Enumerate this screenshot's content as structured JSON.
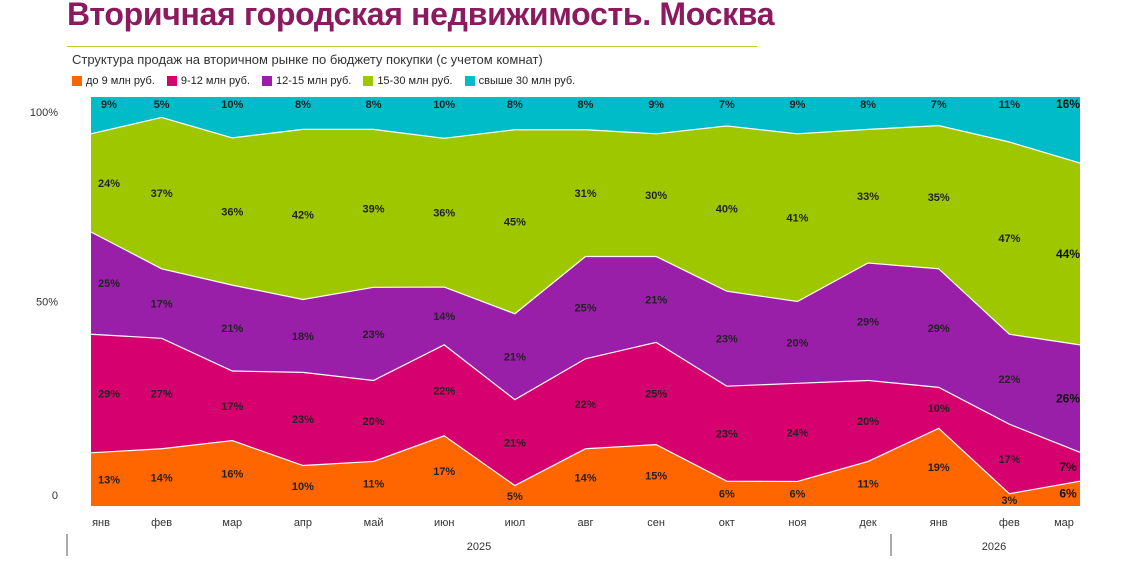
{
  "title": "Вторичная городская недвижимость. Москва",
  "subtitle": "Структура продаж на вторичном рынке по бюджету покупки (с учетом комнат)",
  "chart_data": {
    "type": "area",
    "stacked": true,
    "normalized_percent": true,
    "categories": [
      "янв",
      "фев",
      "мар",
      "апр",
      "май",
      "июн",
      "июл",
      "авг",
      "сен",
      "окт",
      "ноя",
      "дек",
      "янв",
      "фев",
      "мар"
    ],
    "years": [
      {
        "label": "2025",
        "months": 12
      },
      {
        "label": "2026",
        "months": 3
      }
    ],
    "y_ticks": [
      "0",
      "50%",
      "100%"
    ],
    "ylim": [
      0,
      100
    ],
    "legend_position": "top",
    "series": [
      {
        "name": "до 9 млн руб.",
        "color": "#ff6600",
        "values": [
          13,
          14,
          16,
          10,
          11,
          17,
          5,
          14,
          15,
          6,
          6,
          11,
          19,
          3,
          6
        ]
      },
      {
        "name": "9-12 млн руб.",
        "color": "#d6006e",
        "values": [
          29,
          27,
          17,
          23,
          20,
          22,
          21,
          22,
          25,
          23,
          24,
          20,
          10,
          17,
          7
        ]
      },
      {
        "name": "12-15 млн руб.",
        "color": "#9a1fa8",
        "values": [
          25,
          17,
          21,
          18,
          23,
          14,
          21,
          25,
          21,
          23,
          20,
          29,
          29,
          22,
          26
        ]
      },
      {
        "name": "15-30 млн руб.",
        "color": "#9ec700",
        "values": [
          24,
          37,
          36,
          42,
          39,
          36,
          45,
          31,
          30,
          40,
          41,
          33,
          35,
          47,
          44
        ]
      },
      {
        "name": "свыше 30 млн руб.",
        "color": "#00bcc8",
        "values": [
          9,
          5,
          10,
          8,
          8,
          10,
          8,
          8,
          9,
          7,
          9,
          8,
          7,
          11,
          16
        ]
      }
    ]
  }
}
